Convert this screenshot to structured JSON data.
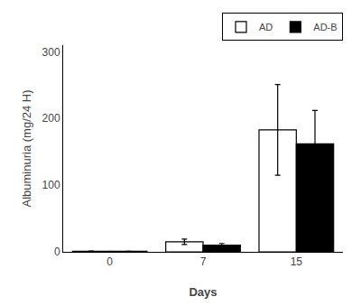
{
  "chart_data": {
    "type": "bar",
    "xlabel": "Days",
    "ylabel": "Albuminuria (mg/24 H)",
    "categories": [
      "0",
      "7",
      "15"
    ],
    "series": [
      {
        "name": "AD",
        "color": "white",
        "values": [
          1.0,
          15.0,
          183.0
        ],
        "errors": [
          0.3,
          4.0,
          68.0
        ]
      },
      {
        "name": "AD-B",
        "color": "black",
        "values": [
          0.8,
          10.0,
          162.0
        ],
        "errors": [
          0.2,
          2.5,
          50.0
        ]
      }
    ],
    "ylim": [
      0,
      310
    ],
    "yticks": [
      0,
      100,
      200,
      300
    ],
    "grid": false,
    "legend": "upper right"
  }
}
